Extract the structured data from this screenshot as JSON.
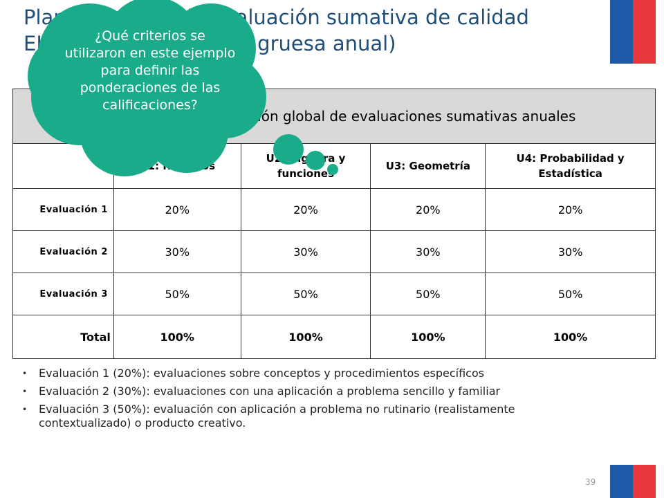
{
  "title": "Planificación de la evaluación sumativa de calidad EJEMPLO (planificación gruesa anual)",
  "bubble_question": "¿Qué criterios se utilizaron en este ejemplo para definir las ponderaciones de las calificaciones?",
  "colors": {
    "title": "#1f4e79",
    "bubble": "#1aab8a",
    "flag_blue": "#1f5aa8",
    "flag_red": "#e5373c",
    "header_bg": "#d9d9d9"
  },
  "table": {
    "header": "Ponderación global de evaluaciones sumativas anuales",
    "units": [
      "U1: Números",
      "U2: Álgebra y funciones",
      "U3: Geometría",
      "U4: Probabilidad y Estadística"
    ],
    "rows": [
      {
        "label": "Evaluación 1",
        "values": [
          "20%",
          "20%",
          "20%",
          "20%"
        ]
      },
      {
        "label": "Evaluación 2",
        "values": [
          "30%",
          "30%",
          "30%",
          "30%"
        ]
      },
      {
        "label": "Evaluación 3",
        "values": [
          "50%",
          "50%",
          "50%",
          "50%"
        ]
      }
    ],
    "total": {
      "label": "Total",
      "values": [
        "100%",
        "100%",
        "100%",
        "100%"
      ]
    }
  },
  "bullet_marker": "•",
  "bullets": [
    "Evaluación 1 (20%): evaluaciones sobre conceptos y procedimientos específicos",
    "Evaluación 2 (30%): evaluaciones con una aplicación a problema sencillo y familiar",
    "Evaluación 3 (50%): evaluación con aplicación a problema no rutinario (realistamente contextualizado) o producto creativo."
  ],
  "page_number": "39"
}
